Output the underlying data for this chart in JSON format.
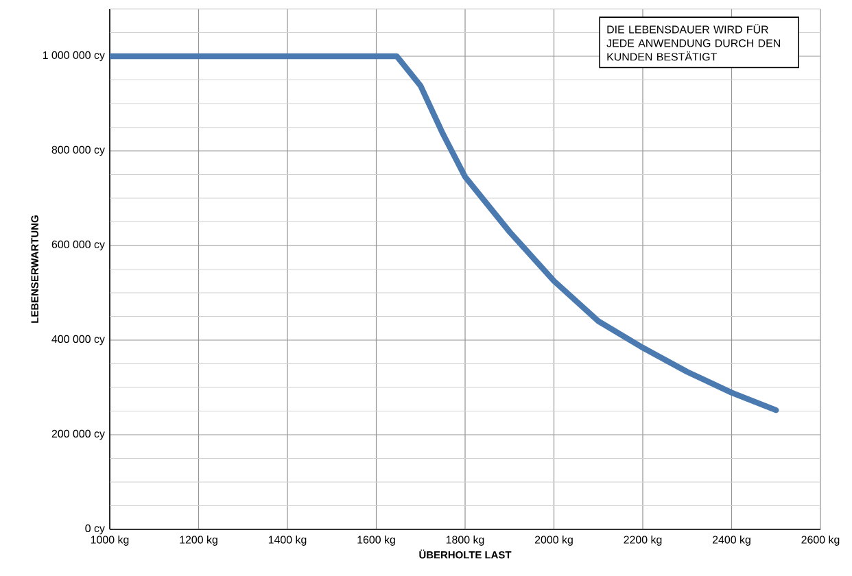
{
  "chart_data": {
    "type": "line",
    "xlabel": "ÜBERHOLTE LAST",
    "ylabel": "LEBENSERWARTUNG",
    "annotations": [
      "DIE LEBENSDAUER WIRD FÜR JEDE ANWENDUNG DURCH DEN KUNDEN BESTÄTIGT"
    ],
    "series": [
      {
        "color": "#4a7ab0",
        "x": [
          1000,
          1200,
          1400,
          1600,
          1646,
          1700,
          1750,
          1800,
          1900,
          2000,
          2100,
          2200,
          2300,
          2400,
          2500
        ],
        "values": [
          1000000,
          1000000,
          1000000,
          1000000,
          1000000,
          937000,
          836000,
          745000,
          629000,
          525000,
          440000,
          384000,
          333000,
          289000,
          252000
        ]
      }
    ],
    "xlim": [
      1000,
      2600
    ],
    "ylim": [
      0,
      1100000
    ],
    "xticks": [
      {
        "value": 1000,
        "label": "1000 kg"
      },
      {
        "value": 1200,
        "label": "1200 kg"
      },
      {
        "value": 1400,
        "label": "1400 kg"
      },
      {
        "value": 1600,
        "label": "1600 kg"
      },
      {
        "value": 1800,
        "label": "1800 kg"
      },
      {
        "value": 2000,
        "label": "2000 kg"
      },
      {
        "value": 2200,
        "label": "2200 kg"
      },
      {
        "value": 2400,
        "label": "2400 kg"
      },
      {
        "value": 2600,
        "label": "2600 kg"
      }
    ],
    "yticks": [
      {
        "value": 0,
        "label": "0 cy"
      },
      {
        "value": 50000,
        "label": null
      },
      {
        "value": 100000,
        "label": null
      },
      {
        "value": 150000,
        "label": null
      },
      {
        "value": 200000,
        "label": "200 000 cy"
      },
      {
        "value": 250000,
        "label": null
      },
      {
        "value": 300000,
        "label": null
      },
      {
        "value": 350000,
        "label": null
      },
      {
        "value": 400000,
        "label": "400 000 cy"
      },
      {
        "value": 450000,
        "label": null
      },
      {
        "value": 500000,
        "label": null
      },
      {
        "value": 550000,
        "label": null
      },
      {
        "value": 600000,
        "label": "600 000 cy"
      },
      {
        "value": 650000,
        "label": null
      },
      {
        "value": 700000,
        "label": null
      },
      {
        "value": 750000,
        "label": null
      },
      {
        "value": 800000,
        "label": "800 000 cy"
      },
      {
        "value": 850000,
        "label": null
      },
      {
        "value": 900000,
        "label": null
      },
      {
        "value": 950000,
        "label": null
      },
      {
        "value": 1000000,
        "label": "1 000 000 cy"
      },
      {
        "value": 1050000,
        "label": null
      }
    ],
    "grid": true,
    "marker": "none",
    "line_style": "solid"
  }
}
